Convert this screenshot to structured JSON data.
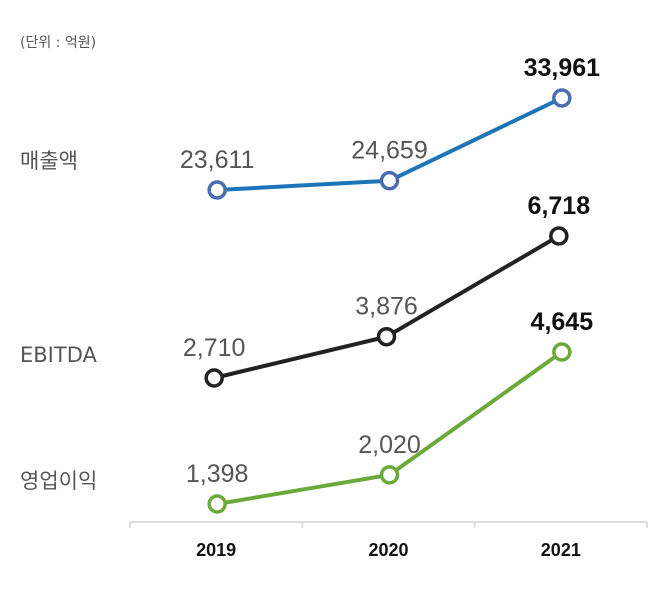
{
  "chart_data": {
    "type": "line",
    "unit_note": "(단위 : 억원)",
    "categories": [
      "2019",
      "2020",
      "2021"
    ],
    "series": [
      {
        "name": "매출액",
        "values": [
          23611,
          24659,
          33961
        ],
        "labels": [
          "23,611",
          "24,659",
          "33,961"
        ],
        "line_color": "#1d75b8",
        "marker_color": "#4a6db0"
      },
      {
        "name": "EBITDA",
        "values": [
          2710,
          3876,
          6718
        ],
        "labels": [
          "2,710",
          "3,876",
          "6,718"
        ],
        "line_color": "#222222",
        "marker_color": "#222222"
      },
      {
        "name": "영업이익",
        "values": [
          1398,
          2020,
          4645
        ],
        "labels": [
          "1,398",
          "2,020",
          "4,645"
        ],
        "line_color": "#6aaa3a",
        "marker_color": "#6aaa3a"
      }
    ],
    "grid": false,
    "legend": "left row labels",
    "independent_scales": true
  }
}
